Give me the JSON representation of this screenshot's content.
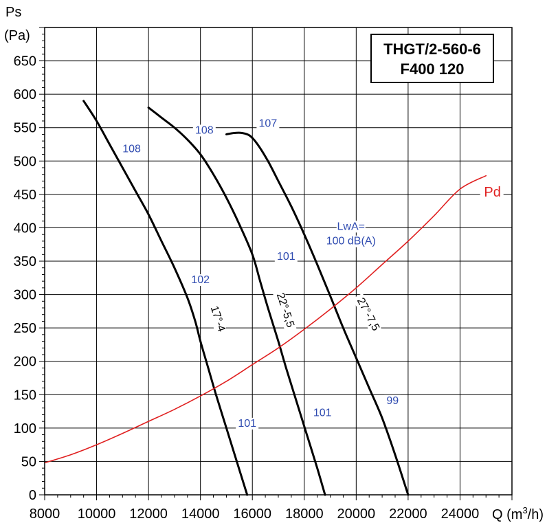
{
  "chart_data": {
    "type": "line",
    "title_lines": [
      "THGT/2-560-6",
      "F400 120"
    ],
    "ylabel_lines": [
      "Ps",
      "(Pa)"
    ],
    "xlabel_prefix": "Q (m",
    "xlabel_sup": "3",
    "xlabel_suffix": "/h)",
    "xlim": [
      8000,
      26000
    ],
    "ylim": [
      0,
      700
    ],
    "grid": true,
    "x_ticks": [
      8000,
      10000,
      12000,
      14000,
      16000,
      18000,
      20000,
      22000,
      24000
    ],
    "x_tick_labels": [
      "8000",
      "10000",
      "12000",
      "14000",
      "16000",
      "18000",
      "20000",
      "22000",
      "24000"
    ],
    "y_ticks": [
      0,
      50,
      100,
      150,
      200,
      250,
      300,
      350,
      400,
      450,
      500,
      550,
      600,
      650
    ],
    "y_tick_labels": [
      "0",
      "50",
      "100",
      "150",
      "200",
      "250",
      "300",
      "350",
      "400",
      "450",
      "500",
      "550",
      "600",
      "650"
    ],
    "series": [
      {
        "name": "17°-4",
        "color": "#000000",
        "x": [
          9500,
          10000,
          10500,
          11000,
          11500,
          12000,
          12500,
          13000,
          13500,
          13800,
          14000,
          14300,
          14600,
          15000,
          15400,
          15800
        ],
        "y": [
          590,
          560,
          525,
          490,
          455,
          420,
          380,
          340,
          295,
          260,
          230,
          190,
          150,
          100,
          50,
          0
        ]
      },
      {
        "name": "22°-5,5",
        "color": "#000000",
        "x": [
          12000,
          12500,
          13000,
          13500,
          14000,
          14500,
          15000,
          15500,
          16000,
          16300,
          16600,
          17000,
          17300,
          17700,
          18100,
          18500,
          18800
        ],
        "y": [
          580,
          565,
          550,
          532,
          510,
          480,
          445,
          405,
          360,
          320,
          280,
          230,
          190,
          140,
          90,
          40,
          0
        ]
      },
      {
        "name": "27°-7,5",
        "color": "#000000",
        "x": [
          15000,
          15300,
          15600,
          15900,
          16200,
          16600,
          17000,
          17500,
          18000,
          18500,
          19000,
          19500,
          20000,
          20500,
          21000,
          21500,
          22000
        ],
        "y": [
          540,
          542,
          542,
          538,
          525,
          500,
          470,
          432,
          390,
          345,
          298,
          250,
          205,
          160,
          115,
          60,
          0
        ]
      },
      {
        "name": "Pd",
        "color": "#e02020",
        "x": [
          8000,
          9000,
          10000,
          11000,
          12000,
          13000,
          14000,
          15000,
          16000,
          17000,
          18000,
          19000,
          20000,
          21000,
          22000,
          23000,
          24000,
          25000
        ],
        "y": [
          48,
          60,
          75,
          92,
          110,
          128,
          148,
          170,
          195,
          220,
          248,
          278,
          310,
          345,
          380,
          418,
          458,
          478
        ]
      }
    ],
    "curve_labels": [
      {
        "text": "17°-4",
        "x": 14550,
        "y": 262,
        "angle": 72
      },
      {
        "text": "22°-5,5",
        "x": 17150,
        "y": 275,
        "angle": 72
      },
      {
        "text": "27°-7,5",
        "x": 20350,
        "y": 268,
        "angle": 62
      }
    ],
    "annotations": [
      {
        "text": "108",
        "x": 11350,
        "y": 513
      },
      {
        "text": "108",
        "x": 14150,
        "y": 541
      },
      {
        "text": "107",
        "x": 16600,
        "y": 551
      },
      {
        "text": "101",
        "x": 17300,
        "y": 352
      },
      {
        "text": "102",
        "x": 14000,
        "y": 317
      },
      {
        "text": "101",
        "x": 15800,
        "y": 102
      },
      {
        "text": "101",
        "x": 18700,
        "y": 118
      },
      {
        "text": "99",
        "x": 21400,
        "y": 136
      },
      {
        "text": "LwA=",
        "x": 19800,
        "y": 397
      },
      {
        "text": "100 dB(A)",
        "x": 19800,
        "y": 375
      }
    ],
    "pd_label": {
      "text": "Pd",
      "x": 25250,
      "y": 447
    }
  }
}
